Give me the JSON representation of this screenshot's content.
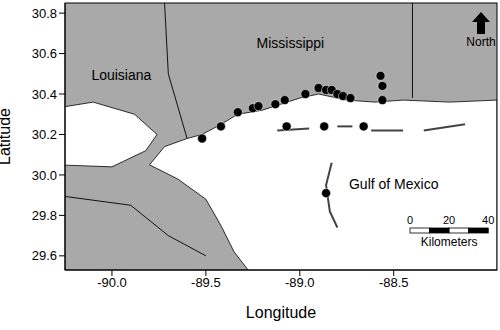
{
  "chart_data": {
    "type": "scatter",
    "x_label": "Longitude",
    "y_label": "Latitude",
    "x": [
      -89.52,
      -89.42,
      -89.33,
      -89.25,
      -89.22,
      -89.13,
      -89.08,
      -88.97,
      -88.9,
      -88.86,
      -88.83,
      -88.8,
      -88.77,
      -88.73,
      -88.57,
      -88.56,
      -88.56,
      -89.07,
      -88.87,
      -88.66,
      -88.86
    ],
    "y": [
      30.18,
      30.24,
      30.31,
      30.33,
      30.34,
      30.35,
      30.37,
      30.4,
      30.43,
      30.42,
      30.42,
      30.4,
      30.39,
      30.38,
      30.49,
      30.44,
      30.37,
      30.24,
      30.24,
      30.24,
      29.91
    ],
    "color": "#000000",
    "marker": "circle",
    "grid": false,
    "xlim": [
      -90.25,
      -87.95
    ],
    "ylim": [
      29.53,
      30.85
    ],
    "xticks": [
      {
        "value": -90,
        "label": "-90.0"
      },
      {
        "value": -89.5,
        "label": "-89.5"
      },
      {
        "value": -89,
        "label": "-89.0"
      },
      {
        "value": -88.5,
        "label": "-88.5"
      }
    ],
    "yticks": [
      29.6,
      29.8,
      {
        "value": 30,
        "label": "30.0"
      },
      30.2,
      30.4,
      30.6,
      30.8
    ],
    "annotations": [
      "Mississippi",
      "Louisiana",
      "Gulf of Mexico"
    ],
    "north_arrow": "North",
    "scale_bar": {
      "label": "Kilometers",
      "ticks": [
        0,
        20,
        40
      ]
    }
  }
}
